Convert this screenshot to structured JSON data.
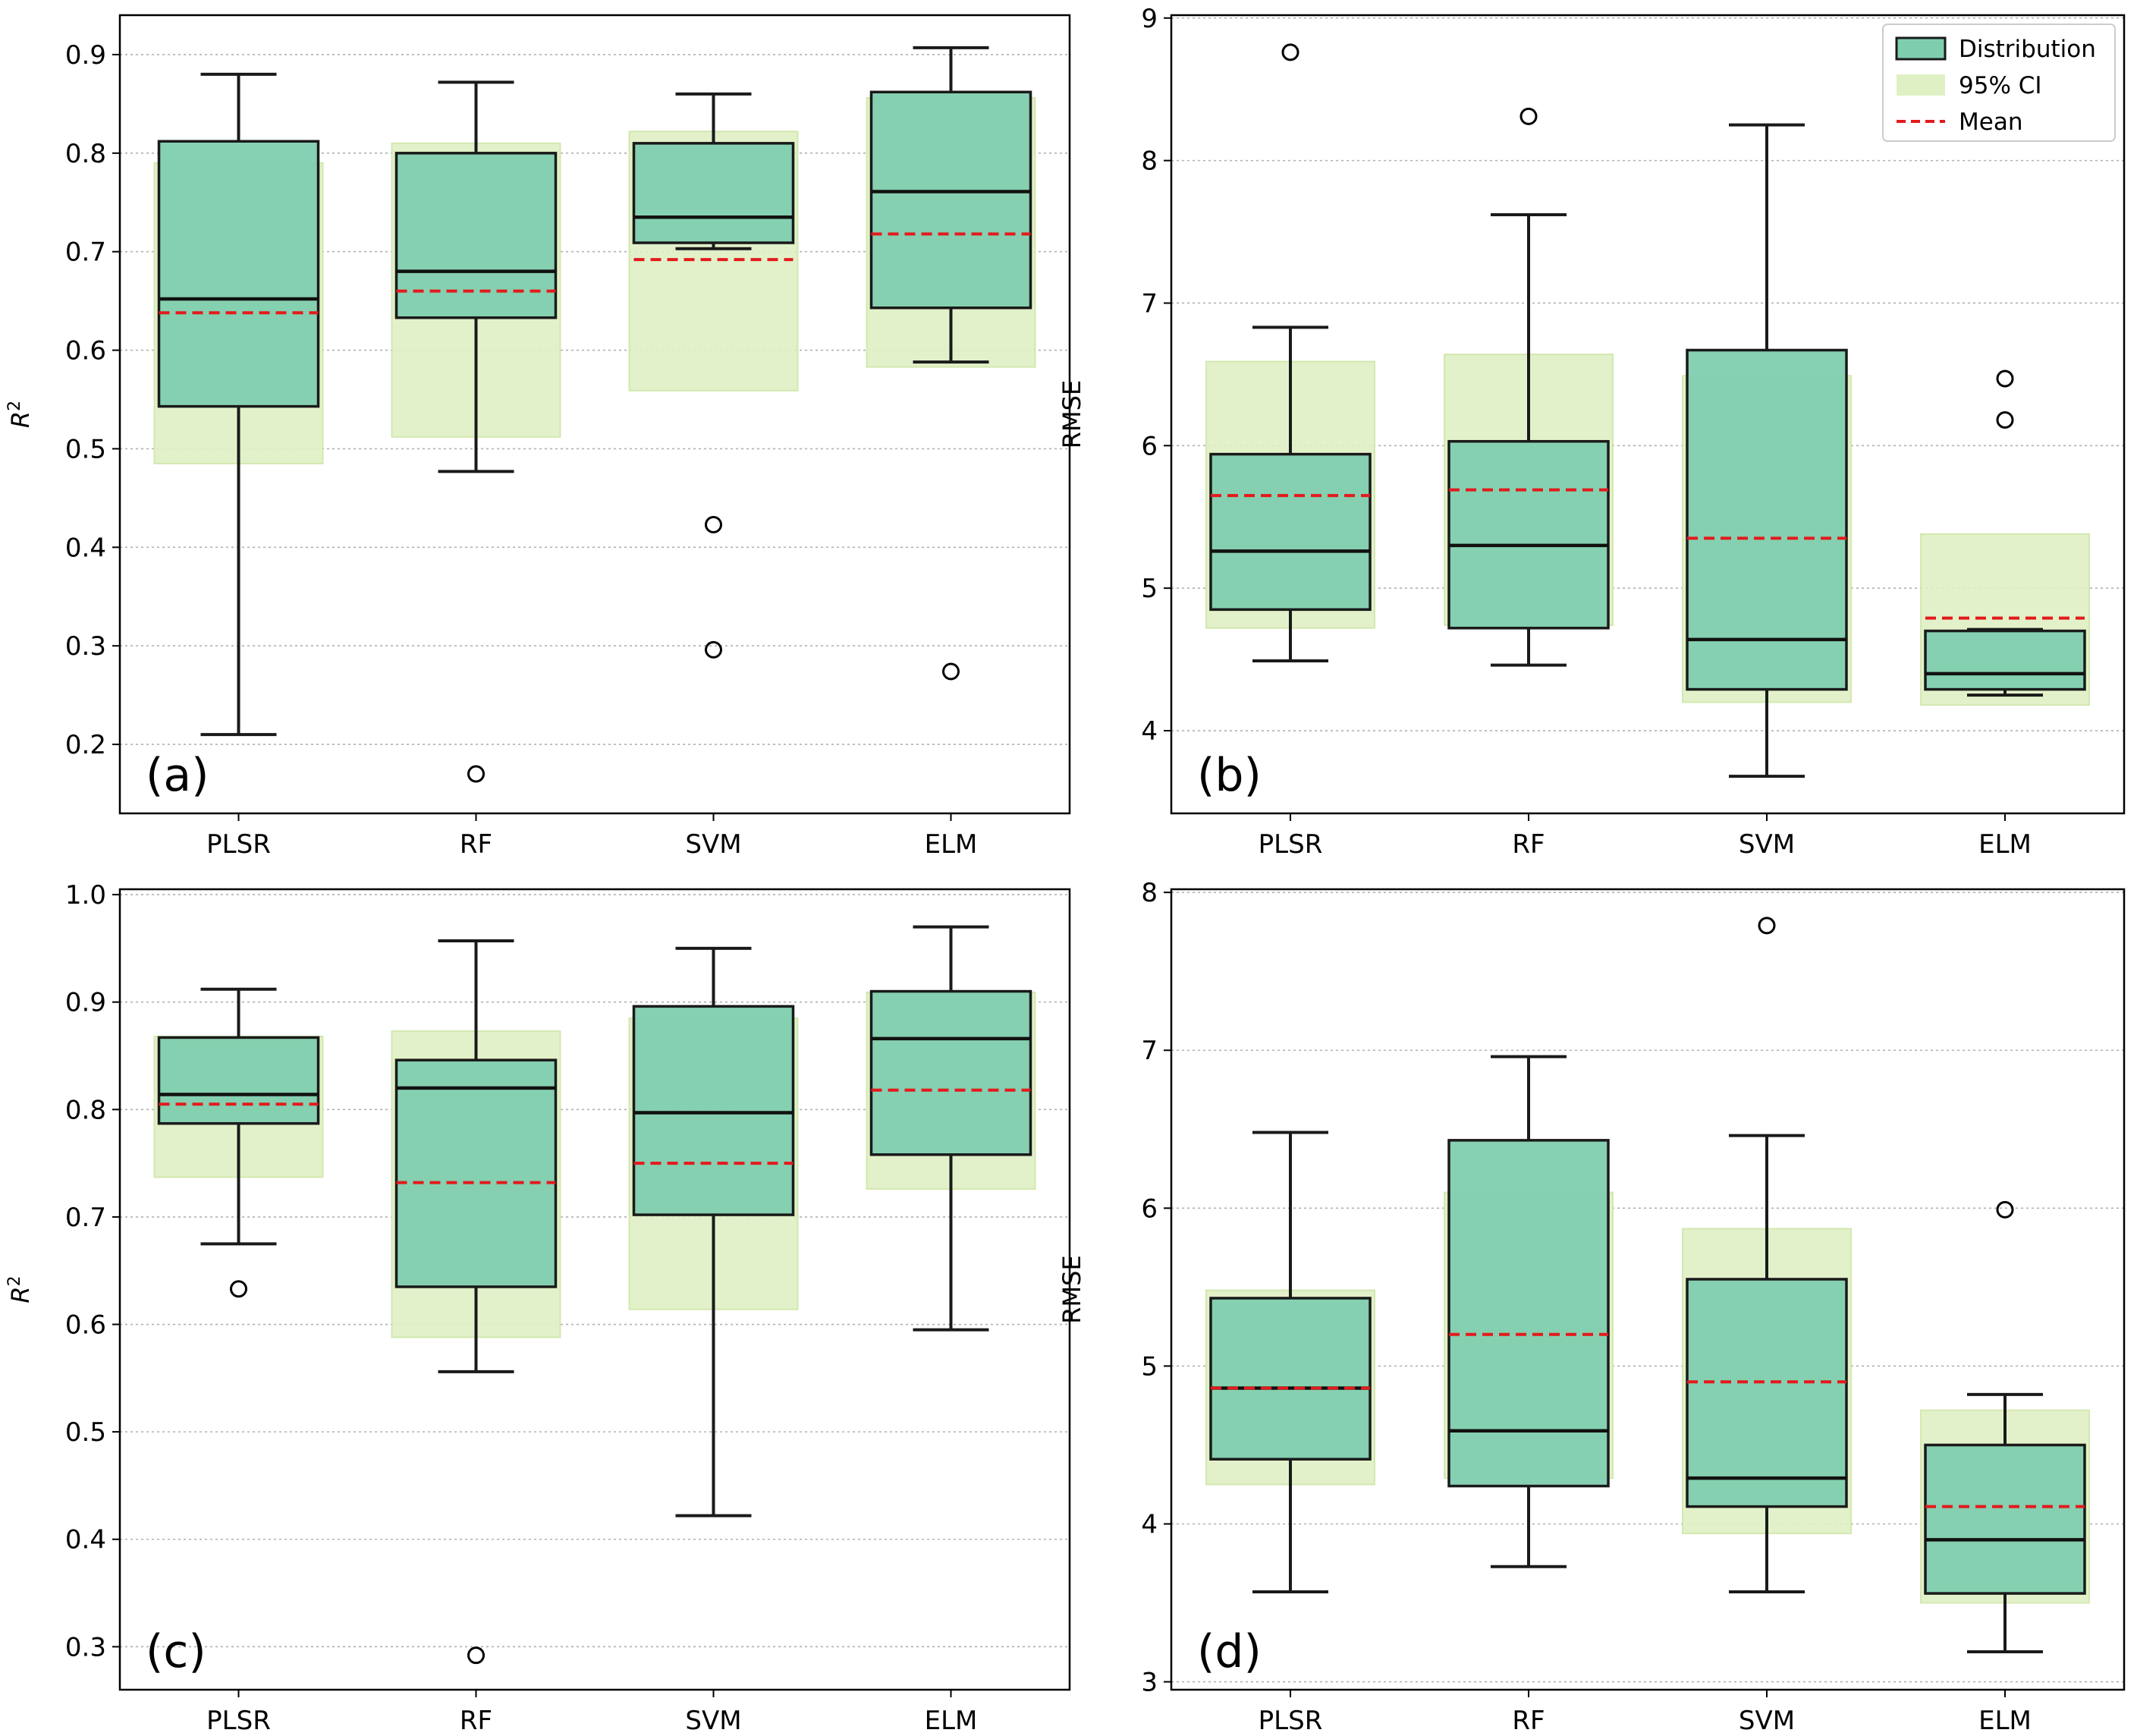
{
  "colors": {
    "box_fill": "#7fcdaf",
    "box_edge": "#1a1a1a",
    "ci_fill": "#dff0c4",
    "mean_line": "#e31a1c",
    "grid": "#b0b0b0"
  },
  "legend": {
    "placement": "top-right of panel (b)",
    "items": [
      {
        "label": "Distribution",
        "kind": "box"
      },
      {
        "label": "95% CI",
        "kind": "ci"
      },
      {
        "label": "Mean",
        "kind": "mean"
      }
    ]
  },
  "chart_data": [
    {
      "type": "box",
      "panel": "(a)",
      "ylabel": "R²",
      "ylim": [
        0.13,
        0.94
      ],
      "yticks": [
        0.2,
        0.3,
        0.4,
        0.5,
        0.6,
        0.7,
        0.8,
        0.9
      ],
      "categories": [
        "PLSR",
        "RF",
        "SVM",
        "ELM"
      ],
      "grid": "horizontal dotted",
      "boxes": [
        {
          "whisker_low": 0.21,
          "q1": 0.543,
          "median": 0.652,
          "q3": 0.812,
          "whisker_high": 0.88,
          "mean": 0.638,
          "ci": [
            0.485,
            0.79
          ],
          "outliers": []
        },
        {
          "whisker_low": 0.477,
          "q1": 0.633,
          "median": 0.68,
          "q3": 0.8,
          "whisker_high": 0.872,
          "mean": 0.66,
          "ci": [
            0.512,
            0.81
          ],
          "outliers": [
            0.17
          ]
        },
        {
          "whisker_low": 0.703,
          "q1": 0.709,
          "median": 0.735,
          "q3": 0.81,
          "whisker_high": 0.86,
          "mean": 0.692,
          "ci": [
            0.559,
            0.822
          ],
          "outliers": [
            0.423,
            0.296
          ]
        },
        {
          "whisker_low": 0.588,
          "q1": 0.643,
          "median": 0.761,
          "q3": 0.862,
          "whisker_high": 0.907,
          "mean": 0.718,
          "ci": [
            0.583,
            0.856
          ],
          "outliers": [
            0.274
          ]
        }
      ]
    },
    {
      "type": "box",
      "panel": "(b)",
      "ylabel": "RMSE",
      "ylim": [
        3.42,
        9.02
      ],
      "yticks": [
        4,
        5,
        6,
        7,
        8,
        9
      ],
      "categories": [
        "PLSR",
        "RF",
        "SVM",
        "ELM"
      ],
      "grid": "horizontal dotted",
      "boxes": [
        {
          "whisker_low": 4.49,
          "q1": 4.85,
          "median": 5.26,
          "q3": 5.94,
          "whisker_high": 6.83,
          "mean": 5.65,
          "ci": [
            4.72,
            6.59
          ],
          "outliers": [
            8.76
          ]
        },
        {
          "whisker_low": 4.46,
          "q1": 4.72,
          "median": 5.3,
          "q3": 6.03,
          "whisker_high": 7.62,
          "mean": 5.69,
          "ci": [
            4.74,
            6.64
          ],
          "outliers": [
            8.31
          ]
        },
        {
          "whisker_low": 3.68,
          "q1": 4.29,
          "median": 4.64,
          "q3": 6.67,
          "whisker_high": 8.25,
          "mean": 5.35,
          "ci": [
            4.2,
            6.49
          ],
          "outliers": []
        },
        {
          "whisker_low": 4.25,
          "q1": 4.29,
          "median": 4.4,
          "q3": 4.7,
          "whisker_high": 4.71,
          "mean": 4.79,
          "ci": [
            4.18,
            5.38
          ],
          "outliers": [
            6.47,
            6.18
          ]
        }
      ]
    },
    {
      "type": "box",
      "panel": "(c)",
      "ylabel": "R²",
      "ylim": [
        0.26,
        1.005
      ],
      "yticks": [
        0.3,
        0.4,
        0.5,
        0.6,
        0.7,
        0.8,
        0.9,
        1.0
      ],
      "categories": [
        "PLSR",
        "RF",
        "SVM",
        "ELM"
      ],
      "grid": "horizontal dotted",
      "boxes": [
        {
          "whisker_low": 0.675,
          "q1": 0.787,
          "median": 0.814,
          "q3": 0.867,
          "whisker_high": 0.912,
          "mean": 0.805,
          "ci": [
            0.737,
            0.868
          ],
          "outliers": [
            0.633
          ]
        },
        {
          "whisker_low": 0.556,
          "q1": 0.635,
          "median": 0.82,
          "q3": 0.846,
          "whisker_high": 0.957,
          "mean": 0.732,
          "ci": [
            0.588,
            0.873
          ],
          "outliers": [
            0.292
          ]
        },
        {
          "whisker_low": 0.422,
          "q1": 0.702,
          "median": 0.797,
          "q3": 0.896,
          "whisker_high": 0.95,
          "mean": 0.75,
          "ci": [
            0.614,
            0.885
          ],
          "outliers": []
        },
        {
          "whisker_low": 0.595,
          "q1": 0.758,
          "median": 0.866,
          "q3": 0.91,
          "whisker_high": 0.97,
          "mean": 0.818,
          "ci": [
            0.726,
            0.909
          ],
          "outliers": []
        }
      ]
    },
    {
      "type": "box",
      "panel": "(d)",
      "ylabel": "RMSE",
      "ylim": [
        2.95,
        8.02
      ],
      "yticks": [
        3,
        4,
        5,
        6,
        7,
        8
      ],
      "categories": [
        "PLSR",
        "RF",
        "SVM",
        "ELM"
      ],
      "grid": "horizontal dotted",
      "boxes": [
        {
          "whisker_low": 3.57,
          "q1": 4.41,
          "median": 4.86,
          "q3": 5.43,
          "whisker_high": 6.48,
          "mean": 4.86,
          "ci": [
            4.25,
            5.48
          ],
          "outliers": []
        },
        {
          "whisker_low": 3.73,
          "q1": 4.24,
          "median": 4.59,
          "q3": 6.43,
          "whisker_high": 6.96,
          "mean": 5.2,
          "ci": [
            4.29,
            6.1
          ],
          "outliers": []
        },
        {
          "whisker_low": 3.57,
          "q1": 4.11,
          "median": 4.29,
          "q3": 5.55,
          "whisker_high": 6.46,
          "mean": 4.9,
          "ci": [
            3.94,
            5.87
          ],
          "outliers": [
            7.79
          ]
        },
        {
          "whisker_low": 3.19,
          "q1": 3.56,
          "median": 3.9,
          "q3": 4.5,
          "whisker_high": 4.82,
          "mean": 4.11,
          "ci": [
            3.5,
            4.72
          ],
          "outliers": [
            5.99
          ]
        }
      ]
    }
  ]
}
